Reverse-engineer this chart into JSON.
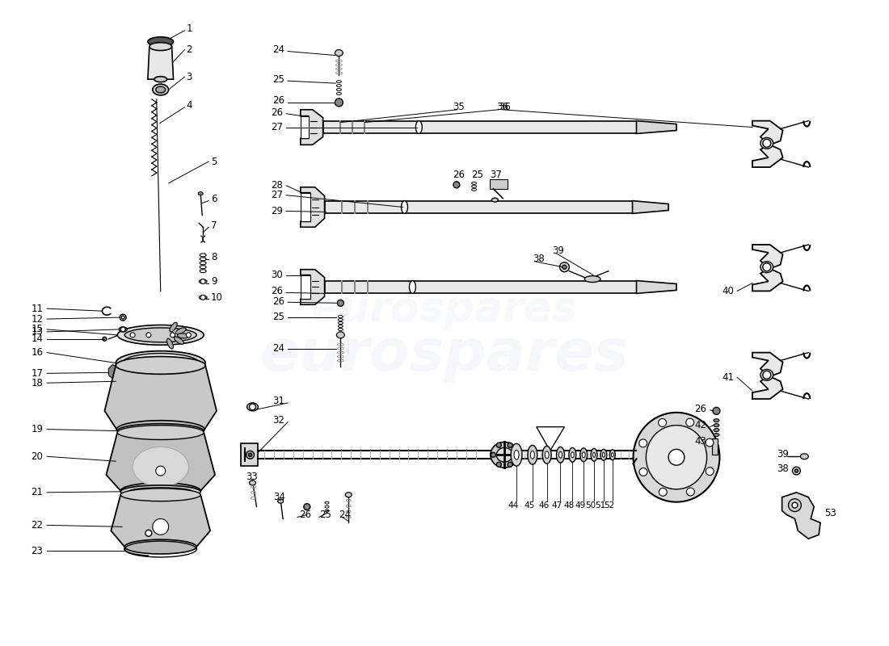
{
  "background_color": "#ffffff",
  "line_color": "#000000",
  "watermark_text": "eurospares",
  "watermark_color": "#c8d4e8",
  "watermark_alpha": 0.18,
  "watermark_fontsize": 52
}
